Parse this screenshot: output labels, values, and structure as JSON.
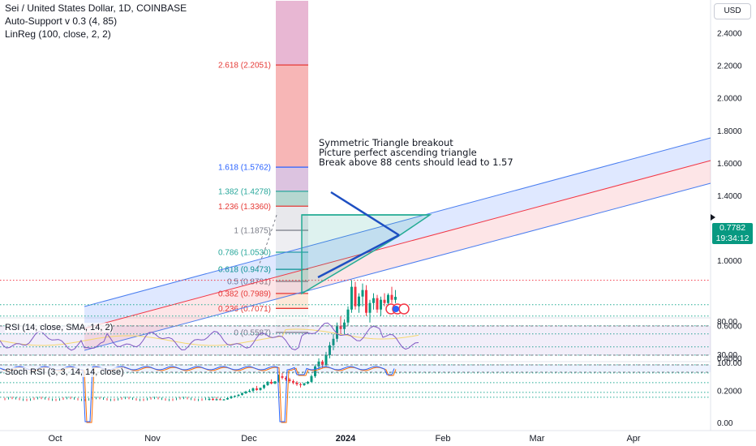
{
  "header": {
    "symbol_line": "Sei / United States Dollar, 1D, COINBASE",
    "indicator_1": "Auto-Support v 0.3 (4, 85)",
    "indicator_2": "LinReg (100, close, 2, 2)"
  },
  "currency_button": "USD",
  "price_badge": {
    "value": "0.7782",
    "countdown": "19:34:12",
    "color": "#089981"
  },
  "annotation": {
    "line1": "Symmetric Triangle breakout",
    "line2": "Picture perfect ascending triangle",
    "line3": "Break above 88 cents should lead to 1.57"
  },
  "rsi_label": "RSI (14, close, SMA, 14, 2)",
  "stoch_label": "Stoch RSI (3, 3, 14, 14, close)",
  "chart_data": {
    "type": "candlestick",
    "price_axis": {
      "ticks": [
        "2.4000",
        "2.2000",
        "2.0000",
        "1.8000",
        "1.6000",
        "1.4000",
        "1.2000",
        "1.0000",
        "0.6000",
        "0.4000",
        "0.2000"
      ],
      "scale": "linear"
    },
    "rsi_axis": {
      "ticks": [
        "80.00",
        "30.00"
      ]
    },
    "stoch_axis": {
      "ticks": [
        "100.00",
        "0.00"
      ]
    },
    "time_axis": {
      "labels": [
        "Oct",
        "Nov",
        "Dec",
        "2024",
        "Feb",
        "Mar",
        "Apr"
      ]
    },
    "fib_levels": [
      {
        "label": "2.618 (2.2051)",
        "value": 2.2051,
        "color": "#e53935"
      },
      {
        "label": "1.618 (1.5762)",
        "value": 1.5762,
        "color": "#2962ff"
      },
      {
        "label": "1.382 (1.4278)",
        "value": 1.4278,
        "color": "#26a69a"
      },
      {
        "label": "1.236 (1.3360)",
        "value": 1.336,
        "color": "#e53935"
      },
      {
        "label": "1 (1.1875)",
        "value": 1.1875,
        "color": "#787b86"
      },
      {
        "label": "0.786 (1.0530)",
        "value": 1.053,
        "color": "#26a69a"
      },
      {
        "label": "0.618 (0.9473)",
        "value": 0.9473,
        "color": "#089981"
      },
      {
        "label": "0.5 (0.8731)",
        "value": 0.8731,
        "color": "#787b86"
      },
      {
        "label": "0.382 (0.7989)",
        "value": 0.7989,
        "color": "#e53935"
      },
      {
        "label": "0.236 (0.7071)",
        "value": 0.7071,
        "color": "#e53935"
      },
      {
        "label": "0 (0.5587)",
        "value": 0.5587,
        "color": "#787b86"
      }
    ],
    "support_levels": [
      0.88,
      0.73,
      0.66,
      0.6,
      0.55,
      0.47,
      0.42,
      0.36,
      0.31,
      0.25,
      0.19,
      0.16
    ],
    "last_price": 0.7782,
    "candles": [
      [
        0.15,
        0.16,
        0.14,
        0.15
      ],
      [
        0.15,
        0.155,
        0.14,
        0.145
      ],
      [
        0.145,
        0.15,
        0.14,
        0.148
      ],
      [
        0.148,
        0.152,
        0.144,
        0.146
      ],
      [
        0.146,
        0.15,
        0.14,
        0.147
      ],
      [
        0.147,
        0.16,
        0.145,
        0.155
      ],
      [
        0.155,
        0.17,
        0.15,
        0.165
      ],
      [
        0.165,
        0.172,
        0.16,
        0.168
      ],
      [
        0.168,
        0.18,
        0.165,
        0.175
      ],
      [
        0.175,
        0.19,
        0.17,
        0.185
      ],
      [
        0.185,
        0.2,
        0.18,
        0.195
      ],
      [
        0.195,
        0.21,
        0.19,
        0.2
      ],
      [
        0.2,
        0.22,
        0.19,
        0.215
      ],
      [
        0.215,
        0.23,
        0.2,
        0.205
      ],
      [
        0.205,
        0.22,
        0.2,
        0.218
      ],
      [
        0.218,
        0.24,
        0.21,
        0.235
      ],
      [
        0.235,
        0.26,
        0.23,
        0.255
      ],
      [
        0.255,
        0.27,
        0.24,
        0.245
      ],
      [
        0.245,
        0.26,
        0.24,
        0.258
      ],
      [
        0.258,
        0.3,
        0.25,
        0.29
      ],
      [
        0.29,
        0.31,
        0.27,
        0.28
      ],
      [
        0.28,
        0.29,
        0.26,
        0.27
      ],
      [
        0.27,
        0.28,
        0.25,
        0.26
      ],
      [
        0.26,
        0.27,
        0.24,
        0.25
      ],
      [
        0.25,
        0.26,
        0.23,
        0.24
      ],
      [
        0.24,
        0.25,
        0.22,
        0.235
      ],
      [
        0.235,
        0.25,
        0.23,
        0.245
      ],
      [
        0.245,
        0.26,
        0.24,
        0.255
      ],
      [
        0.255,
        0.3,
        0.25,
        0.29
      ],
      [
        0.29,
        0.36,
        0.28,
        0.35
      ],
      [
        0.35,
        0.4,
        0.33,
        0.38
      ],
      [
        0.38,
        0.39,
        0.34,
        0.36
      ],
      [
        0.36,
        0.44,
        0.35,
        0.42
      ],
      [
        0.42,
        0.5,
        0.4,
        0.48
      ],
      [
        0.48,
        0.55,
        0.45,
        0.52
      ],
      [
        0.52,
        0.62,
        0.5,
        0.6
      ],
      [
        0.6,
        0.66,
        0.55,
        0.58
      ],
      [
        0.58,
        0.64,
        0.55,
        0.62
      ],
      [
        0.62,
        0.72,
        0.6,
        0.7
      ],
      [
        0.7,
        0.88,
        0.68,
        0.84
      ],
      [
        0.84,
        0.87,
        0.7,
        0.72
      ],
      [
        0.72,
        0.8,
        0.68,
        0.78
      ],
      [
        0.78,
        0.86,
        0.72,
        0.82
      ],
      [
        0.82,
        0.85,
        0.66,
        0.68
      ],
      [
        0.68,
        0.76,
        0.62,
        0.74
      ],
      [
        0.74,
        0.8,
        0.7,
        0.77
      ],
      [
        0.77,
        0.79,
        0.68,
        0.7
      ],
      [
        0.7,
        0.78,
        0.66,
        0.76
      ],
      [
        0.76,
        0.8,
        0.72,
        0.74
      ],
      [
        0.74,
        0.8,
        0.7,
        0.79
      ],
      [
        0.79,
        0.84,
        0.74,
        0.76
      ],
      [
        0.76,
        0.82,
        0.74,
        0.7782
      ]
    ]
  }
}
